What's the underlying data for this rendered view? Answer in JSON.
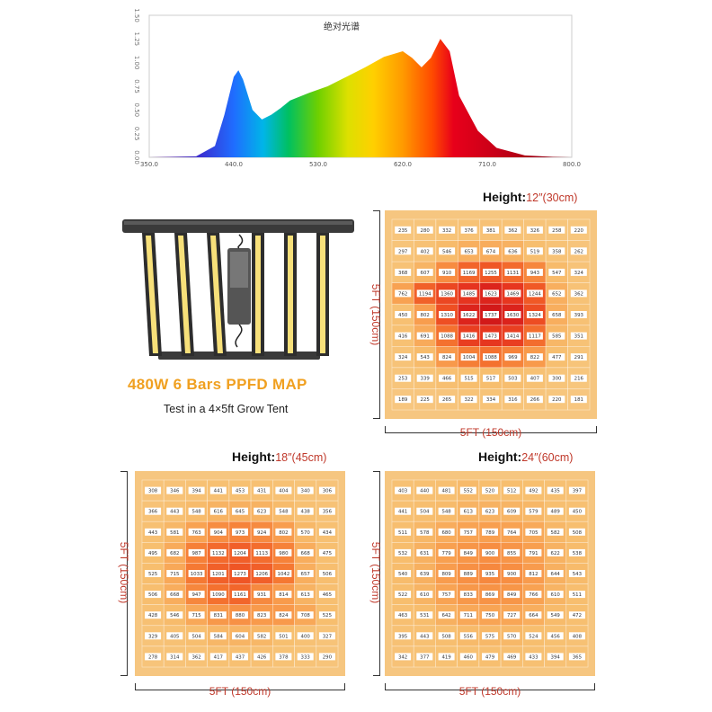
{
  "spectrum": {
    "title": "绝对光谱",
    "x_ticks": [
      "350.0",
      "440.0",
      "530.0",
      "620.0",
      "710.0",
      "800.0"
    ],
    "y_ticks": [
      "0.00",
      "0.25",
      "0.50",
      "0.75",
      "1.00",
      "1.25",
      "1.50"
    ]
  },
  "product": {
    "title": "480W 6 Bars PPFD MAP",
    "subtitle": "Test in a 4×5ft Grow Tent"
  },
  "maps": [
    {
      "id": "12",
      "height_label": "Height:",
      "height_value": "12″(30cm)",
      "width_label": "5FT (150cm)",
      "depth_label": "5FT (150cm)"
    },
    {
      "id": "18",
      "height_label": "Height:",
      "height_value": "18″(45cm)",
      "width_label": "5FT (150cm)",
      "depth_label": "5FT (150cm)"
    },
    {
      "id": "24",
      "height_label": "Height:",
      "height_value": "24″(60cm)",
      "width_label": "5FT (150cm)",
      "depth_label": "5FT (150cm)"
    }
  ],
  "chart_data": [
    {
      "type": "area",
      "title": "绝对光谱",
      "x_range": [
        350,
        800
      ],
      "y_range": [
        0,
        1.5
      ],
      "x_ticks": [
        350,
        440,
        530,
        620,
        710,
        800
      ],
      "y_ticks": [
        0,
        0.25,
        0.5,
        0.75,
        1.0,
        1.25,
        1.5
      ],
      "x": [
        350,
        400,
        420,
        430,
        440,
        445,
        450,
        460,
        470,
        480,
        490,
        500,
        520,
        540,
        560,
        580,
        600,
        620,
        630,
        640,
        650,
        660,
        670,
        680,
        700,
        720,
        750,
        780,
        800
      ],
      "y": [
        0,
        0.01,
        0.12,
        0.45,
        0.85,
        0.92,
        0.82,
        0.5,
        0.4,
        0.45,
        0.52,
        0.6,
        0.68,
        0.75,
        0.85,
        0.95,
        1.06,
        1.12,
        1.05,
        0.95,
        1.05,
        1.25,
        1.12,
        0.65,
        0.28,
        0.1,
        0.02,
        0.005,
        0
      ]
    },
    {
      "type": "heatmap",
      "title": "Height:12″(30cm)",
      "values": [
        [
          235,
          280,
          332,
          376,
          381,
          362,
          326,
          258,
          220
        ],
        [
          297,
          402,
          546,
          653,
          674,
          636,
          519,
          358,
          262
        ],
        [
          368,
          607,
          910,
          1169,
          1255,
          1131,
          943,
          547,
          324
        ],
        [
          762,
          1194,
          1360,
          1485,
          1623,
          1469,
          1244,
          652,
          362
        ],
        [
          450,
          802,
          1310,
          1622,
          1737,
          1630,
          1324,
          658,
          393
        ],
        [
          416,
          691,
          1088,
          1416,
          1473,
          1414,
          1117,
          585,
          351
        ],
        [
          324,
          543,
          824,
          1004,
          1088,
          969,
          822,
          477,
          291
        ],
        [
          253,
          339,
          466,
          515,
          517,
          503,
          407,
          300,
          216
        ],
        [
          189,
          225,
          265,
          322,
          334,
          316,
          266,
          220,
          181
        ]
      ]
    },
    {
      "type": "heatmap",
      "title": "Height:18″(45cm)",
      "values": [
        [
          308,
          346,
          394,
          441,
          453,
          431,
          404,
          340,
          306
        ],
        [
          366,
          443,
          548,
          616,
          645,
          623,
          548,
          438,
          356
        ],
        [
          443,
          581,
          763,
          904,
          973,
          924,
          802,
          570,
          434
        ],
        [
          495,
          682,
          987,
          1132,
          1204,
          1113,
          980,
          668,
          475
        ],
        [
          525,
          715,
          1033,
          1201,
          1273,
          1206,
          1042,
          657,
          506
        ],
        [
          506,
          668,
          947,
          1090,
          1161,
          931,
          814,
          613,
          465
        ],
        [
          428,
          546,
          715,
          831,
          880,
          823,
          824,
          708,
          525
        ],
        [
          329,
          405,
          504,
          584,
          604,
          582,
          501,
          400,
          327
        ],
        [
          278,
          314,
          362,
          417,
          437,
          426,
          378,
          333,
          290
        ]
      ]
    },
    {
      "type": "heatmap",
      "title": "Height:24″(60cm)",
      "values": [
        [
          403,
          440,
          481,
          552,
          520,
          512,
          492,
          435,
          397
        ],
        [
          441,
          504,
          548,
          613,
          623,
          609,
          579,
          489,
          450
        ],
        [
          511,
          578,
          680,
          757,
          789,
          764,
          705,
          582,
          508
        ],
        [
          532,
          631,
          779,
          849,
          900,
          855,
          791,
          622,
          538
        ],
        [
          540,
          639,
          809,
          889,
          935,
          900,
          812,
          644,
          543
        ],
        [
          522,
          610,
          757,
          833,
          869,
          849,
          766,
          610,
          511
        ],
        [
          463,
          531,
          642,
          711,
          750,
          727,
          664,
          549,
          472
        ],
        [
          395,
          443,
          508,
          556,
          575,
          570,
          524,
          456,
          408
        ],
        [
          342,
          377,
          419,
          460,
          479,
          469,
          433,
          394,
          365
        ]
      ]
    }
  ]
}
